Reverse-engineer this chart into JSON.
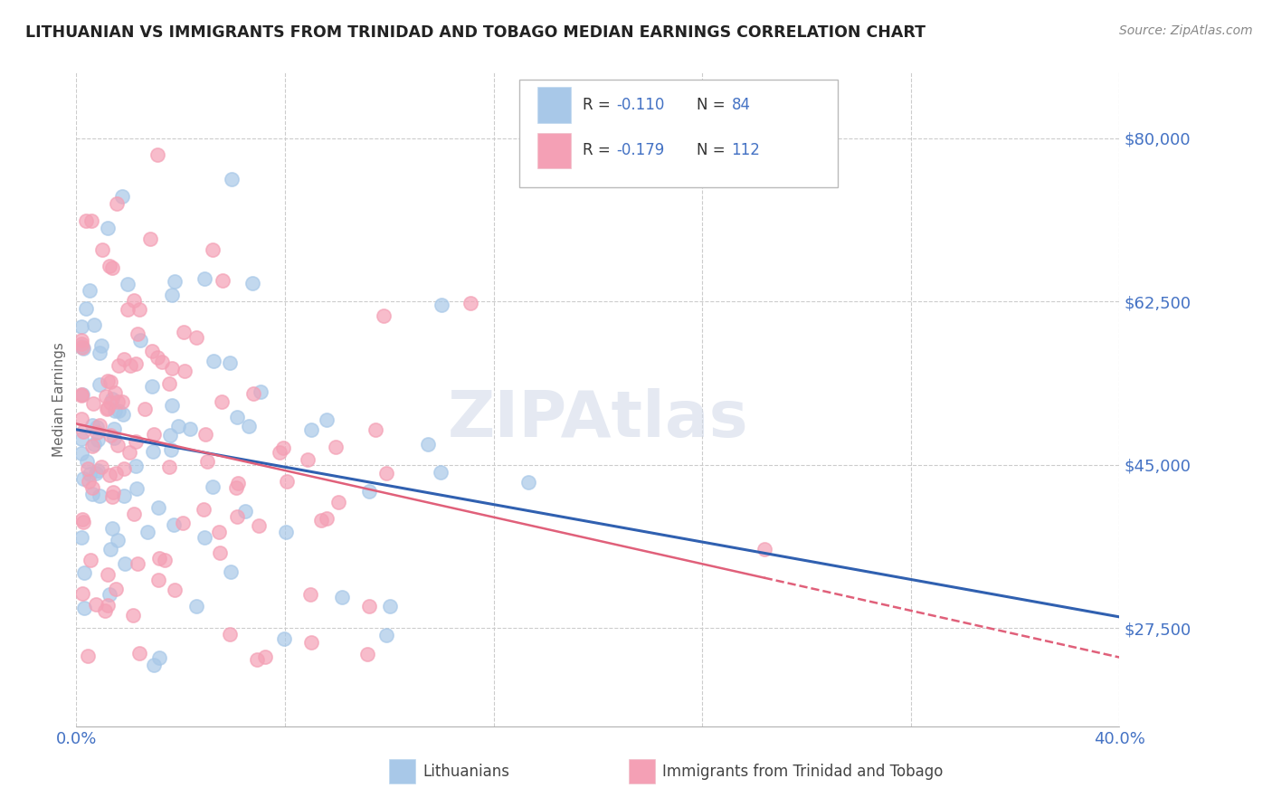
{
  "title": "LITHUANIAN VS IMMIGRANTS FROM TRINIDAD AND TOBAGO MEDIAN EARNINGS CORRELATION CHART",
  "source": "Source: ZipAtlas.com",
  "ylabel": "Median Earnings",
  "xlim": [
    0.0,
    0.4
  ],
  "ylim": [
    17000,
    87000
  ],
  "yticks": [
    27500,
    45000,
    62500,
    80000
  ],
  "ytick_labels": [
    "$27,500",
    "$45,000",
    "$62,500",
    "$80,000"
  ],
  "dot_blue": "#a8c8e8",
  "dot_pink": "#f4a0b5",
  "trend_blue": "#3060b0",
  "trend_pink": "#e0607a",
  "axis_color": "#4472c4",
  "watermark": "ZIPAtlas",
  "background_color": "#ffffff",
  "grid_color": "#cccccc",
  "R_blue": -0.11,
  "N_blue": 84,
  "R_pink": -0.179,
  "N_pink": 112
}
